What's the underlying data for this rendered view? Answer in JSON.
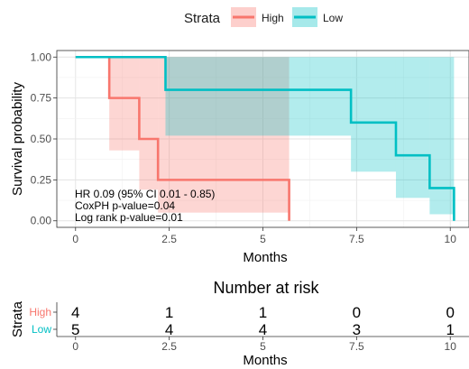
{
  "legend": {
    "title": "Strata",
    "items": [
      {
        "label": "High",
        "color": "#F8766D"
      },
      {
        "label": "Low",
        "color": "#00BFC4"
      }
    ]
  },
  "chart_data": [
    {
      "type": "line",
      "subtype": "kaplan-meier step plot with confidence bands",
      "xlabel": "Months",
      "ylabel": "Survival probability",
      "xlim": [
        -0.5,
        10.5
      ],
      "ylim": [
        -0.04,
        1.04
      ],
      "x_ticks": [
        0,
        2.5,
        5,
        7.5,
        10
      ],
      "x_tick_labels": [
        "0",
        "2.5",
        "5",
        "7.5",
        "10"
      ],
      "y_ticks": [
        0,
        0.25,
        0.5,
        0.75,
        1
      ],
      "y_tick_labels": [
        "0.00",
        "0.25",
        "0.50",
        "0.75",
        "1.00"
      ],
      "grid": true,
      "legend_position": "top",
      "series": [
        {
          "name": "High",
          "color": "#F8766D",
          "steps": [
            {
              "x": 0.9,
              "y": 1.0
            },
            {
              "x": 1.7,
              "y": 0.75
            },
            {
              "x": 2.2,
              "y": 0.5
            },
            {
              "x": 5.7,
              "y": 0.25
            }
          ],
          "end_x": 5.7,
          "end_y": 0.0,
          "ci": [
            {
              "x0": 0.9,
              "x1": 1.7,
              "lo": 0.43,
              "hi": 1.0
            },
            {
              "x0": 1.7,
              "x1": 2.2,
              "lo": 0.19,
              "hi": 1.0
            },
            {
              "x0": 2.2,
              "x1": 5.7,
              "lo": 0.05,
              "hi": 1.0
            }
          ]
        },
        {
          "name": "Low",
          "color": "#00BFC4",
          "steps": [
            {
              "x": 2.4,
              "y": 1.0
            },
            {
              "x": 7.35,
              "y": 0.8
            },
            {
              "x": 8.55,
              "y": 0.6
            },
            {
              "x": 9.45,
              "y": 0.4
            },
            {
              "x": 10.1,
              "y": 0.2
            }
          ],
          "end_x": 10.1,
          "end_y": 0.0,
          "ci": [
            {
              "x0": 2.4,
              "x1": 7.35,
              "lo": 0.52,
              "hi": 1.0
            },
            {
              "x0": 7.35,
              "x1": 8.55,
              "lo": 0.3,
              "hi": 1.0
            },
            {
              "x0": 8.55,
              "x1": 9.45,
              "lo": 0.14,
              "hi": 1.0
            },
            {
              "x0": 9.45,
              "x1": 10.1,
              "lo": 0.04,
              "hi": 1.0
            }
          ]
        }
      ],
      "annotations": [
        "HR 0.09 (95% CI 0.01 - 0.85)",
        "CoxPH p-value=0.04",
        "Log rank p-value=0.01"
      ]
    },
    {
      "type": "table",
      "title": "Number at risk",
      "xlabel": "Months",
      "ylabel": "Strata",
      "x_ticks": [
        0,
        2.5,
        5,
        7.5,
        10
      ],
      "x_tick_labels": [
        "0",
        "2.5",
        "5",
        "7.5",
        "10"
      ],
      "rows": [
        {
          "label": "High",
          "color": "#F8766D",
          "values": [
            4,
            1,
            1,
            0,
            0
          ]
        },
        {
          "label": "Low",
          "color": "#00BFC4",
          "values": [
            5,
            4,
            4,
            3,
            1
          ]
        }
      ]
    }
  ]
}
